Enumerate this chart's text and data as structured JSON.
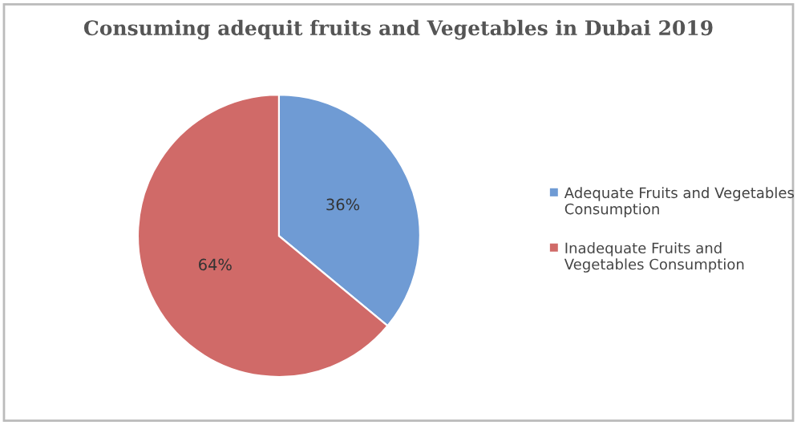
{
  "chart_data": {
    "type": "pie",
    "title": "Consuming adequit fruits and Vegetables in Dubai 2019",
    "categories": [
      "Adequate Fruits and Vegetables Consumption",
      "Inadequate Fruits and Vegetables Consumption"
    ],
    "values": [
      36,
      64
    ],
    "colors": [
      "#6f9bd4",
      "#d06a68"
    ],
    "value_labels": [
      "36%",
      "64%"
    ],
    "legend": "right"
  }
}
